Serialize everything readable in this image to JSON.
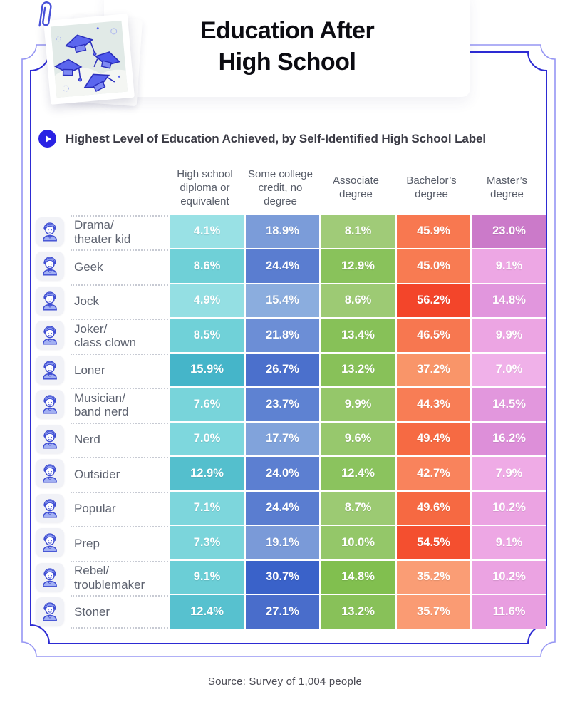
{
  "colors": {
    "frame_outer": "#9595f3",
    "frame_inner": "#2d2bd3",
    "accent_blue": "#2a22e4",
    "title_text": "#0c0c12"
  },
  "header": {
    "title": "Education After\nHigh School"
  },
  "subtitle": {
    "icon": "play-icon",
    "text": "Highest Level of Education Achieved, by Self-Identified High School Label"
  },
  "table": {
    "columns": [
      "High school diploma or equivalent",
      "Some college credit, no degree",
      "Associate degree",
      "Bachelor’s degree",
      "Master’s degree"
    ],
    "rows": [
      {
        "icon": "avatar-drama-icon",
        "label": [
          "Drama/",
          "theater kid"
        ],
        "cells": [
          {
            "value": "4.1%",
            "color": "#99e1e5"
          },
          {
            "value": "18.9%",
            "color": "#7b9cd9"
          },
          {
            "value": "8.1%",
            "color": "#a0cb78"
          },
          {
            "value": "45.9%",
            "color": "#f87850"
          },
          {
            "value": "23.0%",
            "color": "#cb7ac9"
          }
        ]
      },
      {
        "icon": "avatar-geek-icon",
        "label": [
          "Geek"
        ],
        "cells": [
          {
            "value": "8.6%",
            "color": "#6fd0d7"
          },
          {
            "value": "24.4%",
            "color": "#5a7dd0"
          },
          {
            "value": "12.9%",
            "color": "#89c25b"
          },
          {
            "value": "45.0%",
            "color": "#f87b52"
          },
          {
            "value": "9.1%",
            "color": "#eda7e4"
          }
        ]
      },
      {
        "icon": "avatar-jock-icon",
        "label": [
          "Jock"
        ],
        "cells": [
          {
            "value": "4.9%",
            "color": "#94dfe3"
          },
          {
            "value": "15.4%",
            "color": "#8badde"
          },
          {
            "value": "8.6%",
            "color": "#9dca74"
          },
          {
            "value": "56.2%",
            "color": "#f3452a"
          },
          {
            "value": "14.8%",
            "color": "#e196dd"
          }
        ]
      },
      {
        "icon": "avatar-joker-icon",
        "label": [
          "Joker/",
          "class clown"
        ],
        "cells": [
          {
            "value": "8.5%",
            "color": "#70d1d8"
          },
          {
            "value": "21.8%",
            "color": "#6c8ed6"
          },
          {
            "value": "13.4%",
            "color": "#87c158"
          },
          {
            "value": "46.5%",
            "color": "#f77750"
          },
          {
            "value": "9.9%",
            "color": "#eca5e3"
          }
        ]
      },
      {
        "icon": "avatar-loner-icon",
        "label": [
          "Loner"
        ],
        "cells": [
          {
            "value": "15.9%",
            "color": "#45b5c9"
          },
          {
            "value": "26.7%",
            "color": "#4b70cc"
          },
          {
            "value": "13.2%",
            "color": "#88c159"
          },
          {
            "value": "37.2%",
            "color": "#f99569"
          },
          {
            "value": "7.0%",
            "color": "#f0b1e9"
          }
        ]
      },
      {
        "icon": "avatar-musician-icon",
        "label": [
          "Musician/",
          "band nerd"
        ],
        "cells": [
          {
            "value": "7.6%",
            "color": "#78d4da"
          },
          {
            "value": "23.7%",
            "color": "#5e82d2"
          },
          {
            "value": "9.9%",
            "color": "#95c76a"
          },
          {
            "value": "44.3%",
            "color": "#f87d55"
          },
          {
            "value": "14.5%",
            "color": "#e297dd"
          }
        ]
      },
      {
        "icon": "avatar-nerd-icon",
        "label": [
          "Nerd"
        ],
        "cells": [
          {
            "value": "7.0%",
            "color": "#7ed7dd"
          },
          {
            "value": "17.7%",
            "color": "#81a3db"
          },
          {
            "value": "9.6%",
            "color": "#97c86d"
          },
          {
            "value": "49.4%",
            "color": "#f66a43"
          },
          {
            "value": "16.2%",
            "color": "#dd8fd9"
          }
        ]
      },
      {
        "icon": "avatar-outsider-icon",
        "label": [
          "Outsider"
        ],
        "cells": [
          {
            "value": "12.9%",
            "color": "#54bfcd"
          },
          {
            "value": "24.0%",
            "color": "#5c7fd1"
          },
          {
            "value": "12.4%",
            "color": "#8bc35e"
          },
          {
            "value": "42.7%",
            "color": "#f9835c"
          },
          {
            "value": "7.9%",
            "color": "#efabe6"
          }
        ]
      },
      {
        "icon": "avatar-popular-icon",
        "label": [
          "Popular"
        ],
        "cells": [
          {
            "value": "7.1%",
            "color": "#7dd6dc"
          },
          {
            "value": "24.4%",
            "color": "#5a7dd0"
          },
          {
            "value": "8.7%",
            "color": "#9cca73"
          },
          {
            "value": "49.6%",
            "color": "#f66942"
          },
          {
            "value": "10.2%",
            "color": "#eba3e2"
          }
        ]
      },
      {
        "icon": "avatar-prep-icon",
        "label": [
          "Prep"
        ],
        "cells": [
          {
            "value": "7.3%",
            "color": "#7bd5db"
          },
          {
            "value": "19.1%",
            "color": "#7a9ad8"
          },
          {
            "value": "10.0%",
            "color": "#94c769"
          },
          {
            "value": "54.5%",
            "color": "#f44f2f"
          },
          {
            "value": "9.1%",
            "color": "#eda7e4"
          }
        ]
      },
      {
        "icon": "avatar-rebel-icon",
        "label": [
          "Rebel/",
          "troublemaker"
        ],
        "cells": [
          {
            "value": "9.1%",
            "color": "#6bced6"
          },
          {
            "value": "30.7%",
            "color": "#3a62c9"
          },
          {
            "value": "14.8%",
            "color": "#81bf4f"
          },
          {
            "value": "35.2%",
            "color": "#fa9d75"
          },
          {
            "value": "10.2%",
            "color": "#eba3e2"
          }
        ]
      },
      {
        "icon": "avatar-stoner-icon",
        "label": [
          "Stoner"
        ],
        "cells": [
          {
            "value": "12.4%",
            "color": "#57c1cf"
          },
          {
            "value": "27.1%",
            "color": "#496dcb"
          },
          {
            "value": "13.2%",
            "color": "#88c159"
          },
          {
            "value": "35.7%",
            "color": "#fa9b73"
          },
          {
            "value": "11.6%",
            "color": "#e89ee0"
          }
        ]
      }
    ]
  },
  "footer": {
    "source": "Source: Survey of 1,004 people"
  },
  "chart_data": {
    "type": "heatmap",
    "title": "Education After High School",
    "subtitle": "Highest Level of Education Achieved, by Self-Identified High School Label",
    "columns": [
      "High school diploma or equivalent",
      "Some college credit, no degree",
      "Associate degree",
      "Bachelor's degree",
      "Master's degree"
    ],
    "rows": [
      "Drama/theater kid",
      "Geek",
      "Jock",
      "Joker/class clown",
      "Loner",
      "Musician/band nerd",
      "Nerd",
      "Outsider",
      "Popular",
      "Prep",
      "Rebel/troublemaker",
      "Stoner"
    ],
    "values_percent": [
      [
        4.1,
        18.9,
        8.1,
        45.9,
        23.0
      ],
      [
        8.6,
        24.4,
        12.9,
        45.0,
        9.1
      ],
      [
        4.9,
        15.4,
        8.6,
        56.2,
        14.8
      ],
      [
        8.5,
        21.8,
        13.4,
        46.5,
        9.9
      ],
      [
        15.9,
        26.7,
        13.2,
        37.2,
        7.0
      ],
      [
        7.6,
        23.7,
        9.9,
        44.3,
        14.5
      ],
      [
        7.0,
        17.7,
        9.6,
        49.4,
        16.2
      ],
      [
        12.9,
        24.0,
        12.4,
        42.7,
        7.9
      ],
      [
        7.1,
        24.4,
        8.7,
        49.6,
        10.2
      ],
      [
        7.3,
        19.1,
        10.0,
        54.5,
        9.1
      ],
      [
        9.1,
        30.7,
        14.8,
        35.2,
        10.2
      ],
      [
        12.4,
        27.1,
        13.2,
        35.7,
        11.6
      ]
    ],
    "column_color_scales": {
      "col1_teal": [
        "#99e1e5",
        "#45b5c9"
      ],
      "col2_blue": [
        "#8badde",
        "#3a62c9"
      ],
      "col3_green": [
        "#a0cb78",
        "#81bf4f"
      ],
      "col4_orange": [
        "#fa9d75",
        "#f3452a"
      ],
      "col5_orchid": [
        "#f0b1e9",
        "#cb7ac9"
      ]
    },
    "source": "Source: Survey of 1,004 people"
  }
}
